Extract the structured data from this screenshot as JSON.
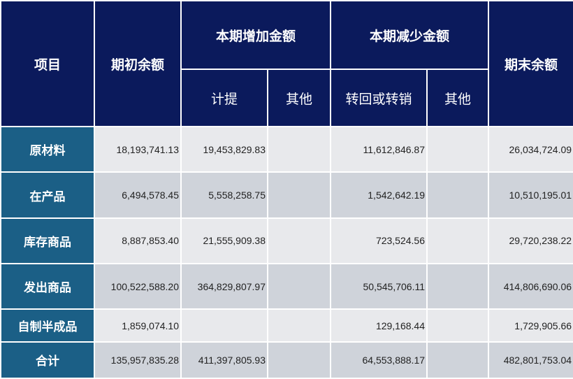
{
  "table": {
    "headers": {
      "item": "项目",
      "opening": "期初余额",
      "increase": "本期增加金额",
      "decrease": "本期减少金额",
      "closing": "期末余额",
      "increase_provision": "计提",
      "increase_other": "其他",
      "decrease_reversal": "转回或转销",
      "decrease_other": "其他"
    },
    "rows": [
      {
        "label": "原材料",
        "opening": "18,193,741.13",
        "provision": "19,453,829.83",
        "inc_other": "",
        "reversal": "11,612,846.87",
        "dec_other": "",
        "closing": "26,034,724.09"
      },
      {
        "label": "在产品",
        "opening": "6,494,578.45",
        "provision": "5,558,258.75",
        "inc_other": "",
        "reversal": "1,542,642.19",
        "dec_other": "",
        "closing": "10,510,195.01"
      },
      {
        "label": "库存商品",
        "opening": "8,887,853.40",
        "provision": "21,555,909.38",
        "inc_other": "",
        "reversal": "723,524.56",
        "dec_other": "",
        "closing": "29,720,238.22"
      },
      {
        "label": "发出商品",
        "opening": "100,522,588.20",
        "provision": "364,829,807.97",
        "inc_other": "",
        "reversal": "50,545,706.11",
        "dec_other": "",
        "closing": "414,806,690.06"
      },
      {
        "label": "自制半成品",
        "opening": "1,859,074.10",
        "provision": "",
        "inc_other": "",
        "reversal": "129,168.44",
        "dec_other": "",
        "closing": "1,729,905.66"
      },
      {
        "label": "合计",
        "opening": "135,957,835.28",
        "provision": "411,397,805.93",
        "inc_other": "",
        "reversal": "64,553,888.17",
        "dec_other": "",
        "closing": "482,801,753.04"
      }
    ]
  }
}
